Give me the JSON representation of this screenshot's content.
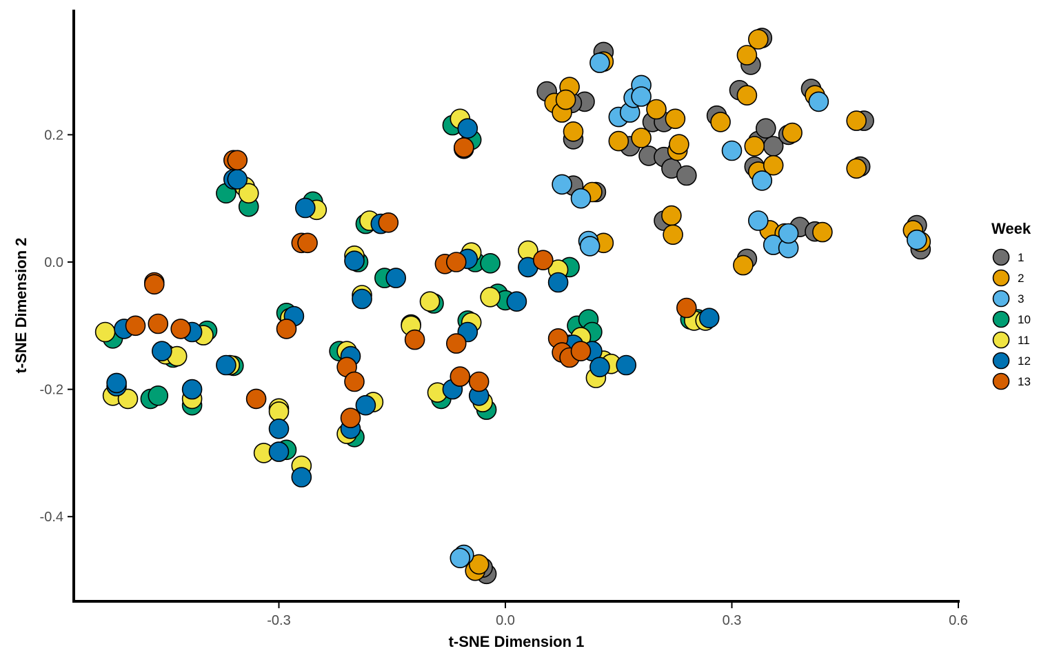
{
  "chart_data": {
    "type": "scatter",
    "title": "",
    "xlabel": "t-SNE Dimension 1",
    "ylabel": "t-SNE Dimension 2",
    "xlim": [
      -0.575,
      0.605
    ],
    "ylim": [
      -0.53,
      0.395
    ],
    "x_ticks": [
      -0.3,
      0.0,
      0.3,
      0.6
    ],
    "x_tick_labels": [
      "-0.3",
      "0.0",
      "0.3",
      "0.6"
    ],
    "y_ticks": [
      -0.4,
      -0.2,
      0.0,
      0.2
    ],
    "y_tick_labels": [
      "-0.4",
      "-0.2",
      "0.0",
      "0.2"
    ],
    "grid": false,
    "legend": {
      "title": "Week",
      "position": "right"
    },
    "series": [
      {
        "name": "1",
        "color": "#6f6f6f",
        "points": [
          [
            0.055,
            0.268
          ],
          [
            0.105,
            0.252
          ],
          [
            0.09,
            0.193
          ],
          [
            0.088,
            0.25
          ],
          [
            0.13,
            0.33
          ],
          [
            0.12,
            0.11
          ],
          [
            0.09,
            0.12
          ],
          [
            0.165,
            0.182
          ],
          [
            0.195,
            0.22
          ],
          [
            0.21,
            0.22
          ],
          [
            0.19,
            0.167
          ],
          [
            0.21,
            0.165
          ],
          [
            0.22,
            0.147
          ],
          [
            0.24,
            0.136
          ],
          [
            0.28,
            0.23
          ],
          [
            0.31,
            0.27
          ],
          [
            0.325,
            0.31
          ],
          [
            0.335,
            0.19
          ],
          [
            0.345,
            0.21
          ],
          [
            0.355,
            0.182
          ],
          [
            0.375,
            0.2
          ],
          [
            0.405,
            0.272
          ],
          [
            0.475,
            0.222
          ],
          [
            0.47,
            0.15
          ],
          [
            0.33,
            0.15
          ],
          [
            0.32,
            0.005
          ],
          [
            0.39,
            0.055
          ],
          [
            0.41,
            0.048
          ],
          [
            0.545,
            0.058
          ],
          [
            0.55,
            0.02
          ],
          [
            0.34,
            0.352
          ],
          [
            0.21,
            0.065
          ],
          [
            -0.025,
            -0.49
          ],
          [
            -0.03,
            -0.48
          ]
        ]
      },
      {
        "name": "2",
        "color": "#e69f00",
        "points": [
          [
            0.065,
            0.25
          ],
          [
            0.085,
            0.275
          ],
          [
            0.075,
            0.235
          ],
          [
            0.08,
            0.255
          ],
          [
            0.09,
            0.205
          ],
          [
            0.13,
            0.315
          ],
          [
            0.115,
            0.11
          ],
          [
            0.13,
            0.03
          ],
          [
            0.15,
            0.19
          ],
          [
            0.18,
            0.195
          ],
          [
            0.2,
            0.24
          ],
          [
            0.225,
            0.225
          ],
          [
            0.228,
            0.175
          ],
          [
            0.23,
            0.185
          ],
          [
            0.285,
            0.22
          ],
          [
            0.32,
            0.262
          ],
          [
            0.32,
            0.325
          ],
          [
            0.335,
            0.35
          ],
          [
            0.33,
            0.182
          ],
          [
            0.335,
            0.142
          ],
          [
            0.355,
            0.152
          ],
          [
            0.38,
            0.203
          ],
          [
            0.41,
            0.262
          ],
          [
            0.465,
            0.222
          ],
          [
            0.465,
            0.147
          ],
          [
            0.35,
            0.05
          ],
          [
            0.37,
            0.045
          ],
          [
            0.42,
            0.047
          ],
          [
            0.315,
            -0.005
          ],
          [
            0.22,
            0.073
          ],
          [
            0.222,
            0.043
          ],
          [
            0.54,
            0.05
          ],
          [
            0.55,
            0.032
          ],
          [
            -0.04,
            -0.485
          ],
          [
            -0.035,
            -0.475
          ]
        ]
      },
      {
        "name": "3",
        "color": "#56b4e9",
        "points": [
          [
            0.075,
            0.122
          ],
          [
            0.1,
            0.1
          ],
          [
            0.11,
            0.033
          ],
          [
            0.112,
            0.025
          ],
          [
            0.125,
            0.313
          ],
          [
            0.15,
            0.228
          ],
          [
            0.165,
            0.235
          ],
          [
            0.17,
            0.258
          ],
          [
            0.18,
            0.278
          ],
          [
            0.18,
            0.26
          ],
          [
            0.3,
            0.175
          ],
          [
            0.335,
            0.065
          ],
          [
            0.34,
            0.128
          ],
          [
            0.355,
            0.027
          ],
          [
            0.375,
            0.022
          ],
          [
            0.375,
            0.045
          ],
          [
            0.415,
            0.252
          ],
          [
            0.545,
            0.035
          ],
          [
            -0.055,
            -0.46
          ],
          [
            -0.06,
            -0.465
          ]
        ]
      },
      {
        "name": "10",
        "color": "#009e73",
        "points": [
          [
            -0.52,
            -0.12
          ],
          [
            -0.47,
            -0.215
          ],
          [
            -0.46,
            -0.21
          ],
          [
            -0.44,
            -0.15
          ],
          [
            -0.415,
            -0.225
          ],
          [
            -0.395,
            -0.108
          ],
          [
            -0.36,
            -0.163
          ],
          [
            -0.37,
            0.108
          ],
          [
            -0.34,
            0.087
          ],
          [
            -0.29,
            -0.08
          ],
          [
            -0.29,
            -0.295
          ],
          [
            -0.255,
            0.095
          ],
          [
            -0.22,
            -0.14
          ],
          [
            -0.2,
            -0.275
          ],
          [
            -0.195,
            0.0
          ],
          [
            -0.185,
            0.06
          ],
          [
            -0.16,
            -0.025
          ],
          [
            -0.125,
            -0.098
          ],
          [
            -0.095,
            -0.065
          ],
          [
            -0.085,
            -0.215
          ],
          [
            -0.07,
            0.215
          ],
          [
            -0.05,
            -0.092
          ],
          [
            -0.045,
            0.192
          ],
          [
            -0.04,
            0.0
          ],
          [
            -0.025,
            -0.232
          ],
          [
            -0.02,
            -0.002
          ],
          [
            -0.01,
            -0.05
          ],
          [
            0.0,
            -0.06
          ],
          [
            0.085,
            -0.008
          ],
          [
            0.095,
            -0.1
          ],
          [
            0.11,
            -0.09
          ],
          [
            0.115,
            -0.11
          ],
          [
            0.245,
            -0.09
          ],
          [
            0.255,
            -0.09
          ]
        ]
      },
      {
        "name": "11",
        "color": "#f0e442",
        "points": [
          [
            -0.53,
            -0.11
          ],
          [
            -0.52,
            -0.21
          ],
          [
            -0.5,
            -0.215
          ],
          [
            -0.45,
            -0.145
          ],
          [
            -0.435,
            -0.148
          ],
          [
            -0.415,
            -0.215
          ],
          [
            -0.4,
            -0.115
          ],
          [
            -0.365,
            -0.162
          ],
          [
            -0.345,
            0.118
          ],
          [
            -0.34,
            0.108
          ],
          [
            -0.285,
            -0.088
          ],
          [
            -0.3,
            -0.23
          ],
          [
            -0.3,
            -0.235
          ],
          [
            -0.32,
            -0.3
          ],
          [
            -0.27,
            -0.32
          ],
          [
            -0.25,
            0.082
          ],
          [
            -0.21,
            -0.14
          ],
          [
            -0.21,
            -0.27
          ],
          [
            -0.2,
            0.01
          ],
          [
            -0.19,
            -0.052
          ],
          [
            -0.175,
            -0.22
          ],
          [
            -0.18,
            0.065
          ],
          [
            -0.125,
            -0.1
          ],
          [
            -0.1,
            -0.062
          ],
          [
            -0.09,
            -0.205
          ],
          [
            -0.06,
            0.225
          ],
          [
            -0.045,
            0.015
          ],
          [
            -0.045,
            -0.095
          ],
          [
            -0.03,
            -0.22
          ],
          [
            -0.02,
            -0.055
          ],
          [
            0.03,
            0.018
          ],
          [
            0.07,
            -0.012
          ],
          [
            0.085,
            -0.13
          ],
          [
            0.1,
            -0.118
          ],
          [
            0.13,
            -0.155
          ],
          [
            0.14,
            -0.16
          ],
          [
            0.12,
            -0.182
          ],
          [
            0.25,
            -0.092
          ],
          [
            0.265,
            -0.092
          ]
        ]
      },
      {
        "name": "12",
        "color": "#0072b2",
        "points": [
          [
            -0.515,
            -0.195
          ],
          [
            -0.515,
            -0.19
          ],
          [
            -0.505,
            -0.105
          ],
          [
            -0.455,
            -0.14
          ],
          [
            -0.415,
            -0.11
          ],
          [
            -0.415,
            -0.2
          ],
          [
            -0.37,
            -0.162
          ],
          [
            -0.36,
            0.13
          ],
          [
            -0.355,
            0.13
          ],
          [
            -0.3,
            -0.262
          ],
          [
            -0.3,
            -0.298
          ],
          [
            -0.28,
            -0.085
          ],
          [
            -0.27,
            -0.338
          ],
          [
            -0.265,
            0.085
          ],
          [
            -0.205,
            -0.148
          ],
          [
            -0.205,
            -0.262
          ],
          [
            -0.2,
            0.002
          ],
          [
            -0.19,
            -0.058
          ],
          [
            -0.185,
            -0.225
          ],
          [
            -0.165,
            0.06
          ],
          [
            -0.145,
            -0.025
          ],
          [
            -0.07,
            -0.2
          ],
          [
            -0.05,
            0.21
          ],
          [
            -0.055,
            0.178
          ],
          [
            -0.05,
            -0.11
          ],
          [
            -0.05,
            0.005
          ],
          [
            -0.035,
            -0.21
          ],
          [
            0.015,
            -0.062
          ],
          [
            0.03,
            -0.008
          ],
          [
            0.07,
            -0.032
          ],
          [
            0.09,
            -0.13
          ],
          [
            0.115,
            -0.14
          ],
          [
            0.125,
            -0.165
          ],
          [
            0.16,
            -0.162
          ],
          [
            0.27,
            -0.088
          ]
        ]
      },
      {
        "name": "13",
        "color": "#d55e00",
        "points": [
          [
            -0.49,
            -0.1
          ],
          [
            -0.465,
            -0.032
          ],
          [
            -0.465,
            -0.035
          ],
          [
            -0.46,
            -0.097
          ],
          [
            -0.43,
            -0.105
          ],
          [
            -0.36,
            0.16
          ],
          [
            -0.355,
            0.16
          ],
          [
            -0.33,
            -0.215
          ],
          [
            -0.29,
            -0.105
          ],
          [
            -0.27,
            0.03
          ],
          [
            -0.262,
            0.03
          ],
          [
            -0.21,
            -0.165
          ],
          [
            -0.2,
            -0.188
          ],
          [
            -0.205,
            -0.245
          ],
          [
            -0.155,
            0.062
          ],
          [
            -0.12,
            -0.122
          ],
          [
            -0.08,
            -0.003
          ],
          [
            -0.065,
            0.0
          ],
          [
            -0.055,
            0.18
          ],
          [
            -0.065,
            -0.128
          ],
          [
            -0.06,
            -0.18
          ],
          [
            -0.035,
            -0.188
          ],
          [
            0.05,
            0.003
          ],
          [
            0.07,
            -0.12
          ],
          [
            0.075,
            -0.142
          ],
          [
            0.085,
            -0.15
          ],
          [
            0.1,
            -0.14
          ],
          [
            0.24,
            -0.072
          ]
        ]
      }
    ]
  }
}
